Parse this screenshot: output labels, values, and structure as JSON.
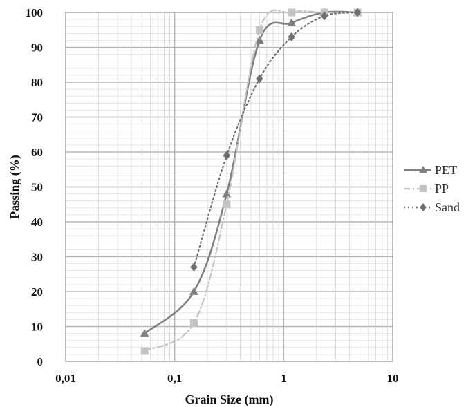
{
  "chart_data": {
    "type": "line",
    "title": "",
    "xlabel": "Grain Size (mm)",
    "ylabel": "Passing  (%)",
    "x_scale": "log",
    "xlim": [
      0.01,
      10
    ],
    "ylim": [
      0,
      100
    ],
    "x_ticks": [
      "0,01",
      "0,1",
      "1",
      "10"
    ],
    "y_ticks": [
      "0",
      "10",
      "20",
      "30",
      "40",
      "50",
      "60",
      "70",
      "80",
      "90",
      "100"
    ],
    "grid": true,
    "legend_position": "right",
    "series": [
      {
        "name": "PET",
        "marker": "triangle",
        "color": "#808080",
        "line_style": "solid",
        "x": [
          0.053,
          0.15,
          0.3,
          0.6,
          1.18,
          2.36,
          4.75
        ],
        "y": [
          8,
          20,
          48,
          92,
          97,
          100,
          100
        ]
      },
      {
        "name": "PP",
        "marker": "square",
        "color": "#c4c4c4",
        "line_style": "dashdot",
        "x": [
          0.053,
          0.15,
          0.3,
          0.6,
          1.18,
          2.36,
          4.75
        ],
        "y": [
          3,
          11,
          45,
          95,
          100,
          100,
          100
        ]
      },
      {
        "name": "Sand",
        "marker": "diamond",
        "color": "#707070",
        "line_style": "dotted",
        "x": [
          0.15,
          0.3,
          0.6,
          1.18,
          2.36,
          4.75
        ],
        "y": [
          27,
          59,
          81,
          93,
          99,
          100
        ]
      }
    ]
  }
}
